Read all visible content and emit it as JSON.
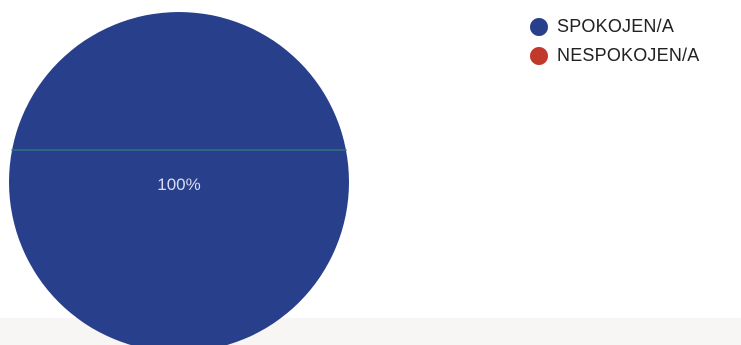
{
  "chart_data": {
    "type": "pie",
    "categories": [
      "SPOKOJEN/A",
      "NESPOKOJEN/A"
    ],
    "values": [
      100,
      0
    ],
    "colors": [
      "#283f8c",
      "#c0392b"
    ],
    "data_labels": [
      "100%"
    ],
    "legend_position": "top-right"
  }
}
